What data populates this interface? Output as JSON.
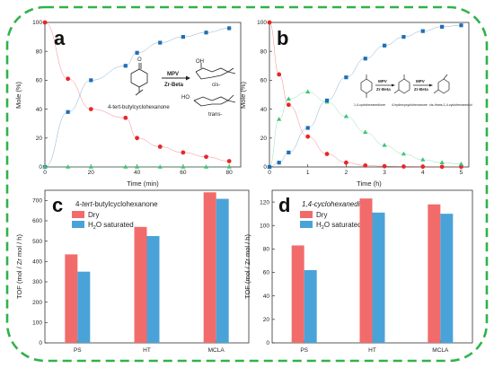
{
  "colors": {
    "frame": "#2fb34a",
    "red": "#e8262a",
    "blue": "#1e6fb5",
    "green": "#3cc47a",
    "bar_dry": "#f26b6b",
    "bar_h2o": "#4aa3d8",
    "axis": "#333333"
  },
  "panel_a": {
    "letter": "a",
    "scheme": {
      "reactant_label": "4-tert-butylcyclohexanone",
      "arrow_top": "MPV",
      "arrow_bottom": "Zr-Beta",
      "cis_label": "cis-",
      "trans_label": "trans-"
    }
  },
  "panel_b": {
    "letter": "b",
    "scheme": {
      "label_1": "1,4-cyclohexanedione",
      "label_2": "4-hydroxycyclohexanone",
      "label_3": "cis-/trans-1,4-cyclohexanediol",
      "arrow_top": "MPV",
      "arrow_bottom": "Zr-Beta"
    }
  },
  "panel_c": {
    "letter": "c",
    "title_prefix": "4-",
    "title_italic": "tert",
    "title_suffix": "-butylcyclohexanone"
  },
  "panel_d": {
    "letter": "d",
    "title_prefix": "1,4-cyclohexanedione"
  },
  "legend_bars": {
    "dry": "Dry",
    "h2o_pre": "H",
    "h2o_sub": "2",
    "h2o_post": "O saturated"
  },
  "chart_data": [
    {
      "id": "a",
      "type": "scatter",
      "xlabel": "Time (min)",
      "ylabel": "Mole (%)",
      "xlim": [
        0,
        85
      ],
      "ylim": [
        0,
        100
      ],
      "xticks": [
        0,
        20,
        40,
        60,
        80
      ],
      "yticks": [
        0,
        20,
        40,
        60,
        80,
        100
      ],
      "series": [
        {
          "color": "red",
          "marker": "circle",
          "x": [
            0,
            10,
            20,
            35,
            40,
            50,
            60,
            70,
            80
          ],
          "y": [
            100,
            61,
            40,
            34,
            20,
            14,
            10,
            7,
            4
          ]
        },
        {
          "color": "blue",
          "marker": "square",
          "x": [
            0,
            10,
            20,
            35,
            40,
            50,
            60,
            70,
            80
          ],
          "y": [
            0,
            38,
            60,
            70,
            79,
            86,
            90,
            93,
            96
          ]
        },
        {
          "color": "green",
          "marker": "triangle",
          "x": [
            0,
            10,
            20,
            35,
            40,
            50,
            60,
            70,
            80
          ],
          "y": [
            0,
            0,
            0,
            0,
            0,
            0,
            0,
            0,
            0
          ]
        }
      ]
    },
    {
      "id": "b",
      "type": "scatter",
      "xlabel": "Time (h)",
      "ylabel": "Mole (%)",
      "xlim": [
        0,
        5.2
      ],
      "ylim": [
        0,
        100
      ],
      "xticks": [
        0,
        1,
        2,
        3,
        4,
        5
      ],
      "yticks": [
        0,
        20,
        40,
        60,
        80,
        100
      ],
      "series": [
        {
          "color": "red",
          "marker": "circle",
          "x": [
            0,
            0.25,
            0.5,
            1,
            1.5,
            2,
            2.5,
            3,
            3.5,
            4,
            4.5,
            5
          ],
          "y": [
            100,
            64,
            43,
            21,
            9,
            3,
            1,
            0.5,
            0.3,
            0.2,
            0.1,
            0.1
          ]
        },
        {
          "color": "green",
          "marker": "triangle",
          "x": [
            0,
            0.25,
            0.5,
            1,
            1.5,
            2,
            2.5,
            3,
            3.5,
            4,
            4.5,
            5
          ],
          "y": [
            0,
            33,
            47,
            52,
            45,
            35,
            24,
            15,
            9,
            5,
            3,
            2
          ]
        },
        {
          "color": "blue",
          "marker": "square",
          "x": [
            0,
            0.25,
            0.5,
            1,
            1.5,
            2,
            2.5,
            3,
            3.5,
            4,
            4.5,
            5
          ],
          "y": [
            0,
            3,
            10,
            27,
            46,
            62,
            75,
            84,
            90,
            94,
            97,
            98
          ]
        }
      ]
    },
    {
      "id": "c",
      "type": "bar",
      "ylabel": "TOF (mol / Zr mol / h)",
      "categories": [
        "PS",
        "HT",
        "MCLA"
      ],
      "ylim": [
        0,
        750
      ],
      "yticks": [
        0,
        100,
        200,
        300,
        400,
        500,
        600,
        700
      ],
      "series": [
        {
          "name": "Dry",
          "values": [
            435,
            570,
            740
          ]
        },
        {
          "name": "H2O saturated",
          "values": [
            350,
            525,
            708
          ]
        }
      ]
    },
    {
      "id": "d",
      "type": "bar",
      "ylabel": "TOF (mol / Zr mol / h)",
      "categories": [
        "PS",
        "HT",
        "MCLA"
      ],
      "ylim": [
        0,
        130
      ],
      "yticks": [
        0,
        20,
        40,
        60,
        80,
        100,
        120
      ],
      "series": [
        {
          "name": "Dry",
          "values": [
            83,
            123,
            118
          ]
        },
        {
          "name": "H2O saturated",
          "values": [
            62,
            111,
            110
          ]
        }
      ]
    }
  ]
}
